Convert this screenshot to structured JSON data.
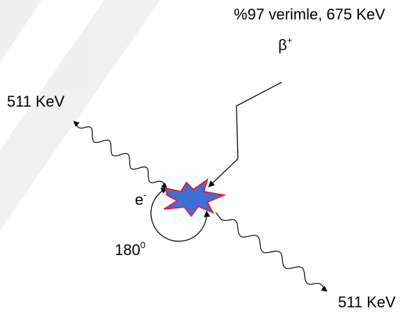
{
  "header": {
    "title": "%97 verimle,  675 KeV",
    "particle": {
      "base": "β",
      "sup": "+"
    }
  },
  "labels": {
    "photon_left": "511 KeV",
    "photon_right": "511 KeV",
    "electron": {
      "base": "e",
      "sup": "-"
    },
    "angle": {
      "base": "180",
      "sup": "0"
    }
  }
}
